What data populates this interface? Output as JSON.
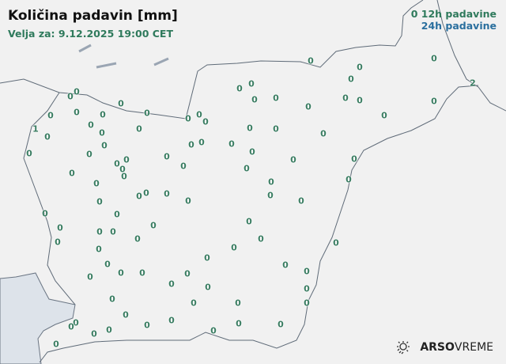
{
  "title": "Količina padavin [mm]",
  "subtitle": "Velja za: 9.12.2025 19:00 CET",
  "legend": {
    "sample_value": "0",
    "label_12h": "12h padavine",
    "label_24h": "24h padavine",
    "color_12h": "#2f7a5c",
    "color_24h": "#2a6f9e"
  },
  "logo": {
    "icon": "sun-rain-icon",
    "brand_bold": "ARSO",
    "brand_light": "VREME"
  },
  "readings": [
    "0",
    "0",
    "0",
    "2",
    "0",
    "0",
    "0",
    "0",
    "0",
    "0",
    "0",
    "0",
    "0",
    "0",
    "0",
    "0",
    "0",
    "0",
    "0",
    "0",
    "0",
    "0",
    "0",
    "0",
    "1",
    "0",
    "0",
    "0",
    "0",
    "0",
    "0",
    "0",
    "0",
    "0",
    "0",
    "0",
    "0",
    "0",
    "0",
    "0",
    "0",
    "0",
    "0",
    "0",
    "0",
    "0",
    "0",
    "0",
    "0",
    "0",
    "0",
    "0",
    "0",
    "0",
    "0",
    "0",
    "0",
    "0",
    "0",
    "0",
    "0",
    "0",
    "0",
    "0",
    "0",
    "0",
    "0",
    "0",
    "0",
    "0",
    "0",
    "0",
    "0",
    "0",
    "0",
    "0",
    "0",
    "0",
    "0",
    "0",
    "0",
    "0",
    "0",
    "0",
    "0",
    "0",
    "0",
    "0",
    "0",
    "0",
    "0",
    "0",
    "0",
    "0",
    "0",
    "0",
    "0",
    "0"
  ]
}
